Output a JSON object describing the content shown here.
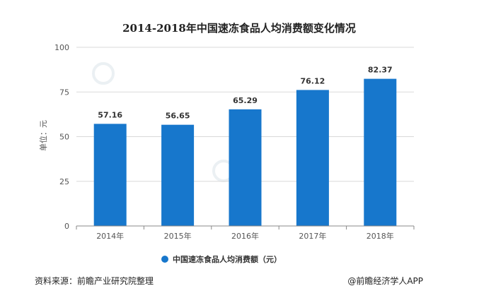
{
  "chart_data": {
    "type": "bar",
    "title": "2014-2018年中国速冻食品人均消费额变化情况",
    "ylabel": "单位：元",
    "xlabel": "",
    "categories": [
      "2014年",
      "2015年",
      "2016年",
      "2017年",
      "2018年"
    ],
    "series": [
      {
        "name": "中国速冻食品人均消费额（元）",
        "values": [
          57.16,
          56.65,
          65.29,
          76.12,
          82.37
        ]
      }
    ],
    "data_labels": [
      "57.16",
      "56.65",
      "65.29",
      "76.12",
      "82.37"
    ],
    "ylim": [
      0,
      100
    ],
    "yticks": [
      0,
      25,
      50,
      75,
      100
    ],
    "ytick_labels": [
      "0",
      "25",
      "50",
      "75",
      "100"
    ],
    "grid": true,
    "legend_position": "bottom",
    "bar_color": "#1777cc"
  },
  "footer": {
    "source": "资料来源：前瞻产业研究院整理",
    "brand": "@前瞻经济学人APP"
  },
  "colors": {
    "bar": "#1777cc",
    "grid": "#d9d9d9",
    "axis": "#888888"
  }
}
